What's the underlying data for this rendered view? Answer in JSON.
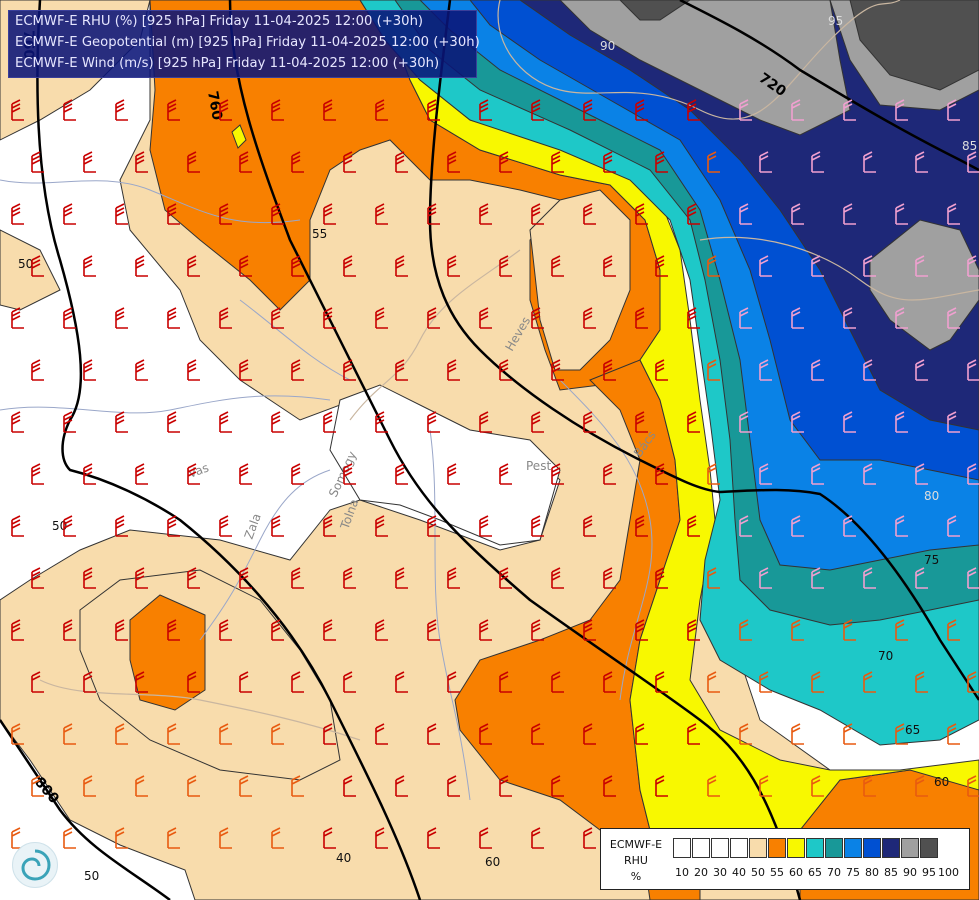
{
  "title_lines": [
    "ECMWF-E RHU (%) [925 hPa] Friday 11-04-2025 12:00 (+30h)",
    "ECMWF-E Geopotential (m) [925 hPa] Friday 11-04-2025 12:00 (+30h)",
    "ECMWF-E Wind (m/s) [925 hPa] Friday 11-04-2025 12:00 (+30h)"
  ],
  "legend": {
    "title_lines": [
      "ECMWF-E",
      "RHU",
      "%"
    ],
    "ticks": [
      "10",
      "20",
      "30",
      "40",
      "50",
      "55",
      "60",
      "65",
      "70",
      "75",
      "80",
      "85",
      "90",
      "95",
      "100"
    ],
    "colors": [
      "#ffffff",
      "#ffffff",
      "#ffffff",
      "#ffffff",
      "#f8dcac",
      "#f88000",
      "#f8f800",
      "#1ec8c8",
      "#189898",
      "#0a82e6",
      "#0050d2",
      "#1e2878",
      "#a0a0a0",
      "#505050"
    ]
  },
  "map": {
    "rhu_contour_labels": [
      "55",
      "50",
      "50",
      "40",
      "60",
      "50",
      "75",
      "70",
      "65",
      "60",
      "95",
      "85",
      "90",
      "80"
    ],
    "geopotential_labels": [
      "720",
      "760",
      "800",
      "760"
    ],
    "place_labels": [
      "Pest",
      "Heves",
      "Bács",
      "Somogy",
      "Vas",
      "Zala",
      "Tolna"
    ]
  }
}
